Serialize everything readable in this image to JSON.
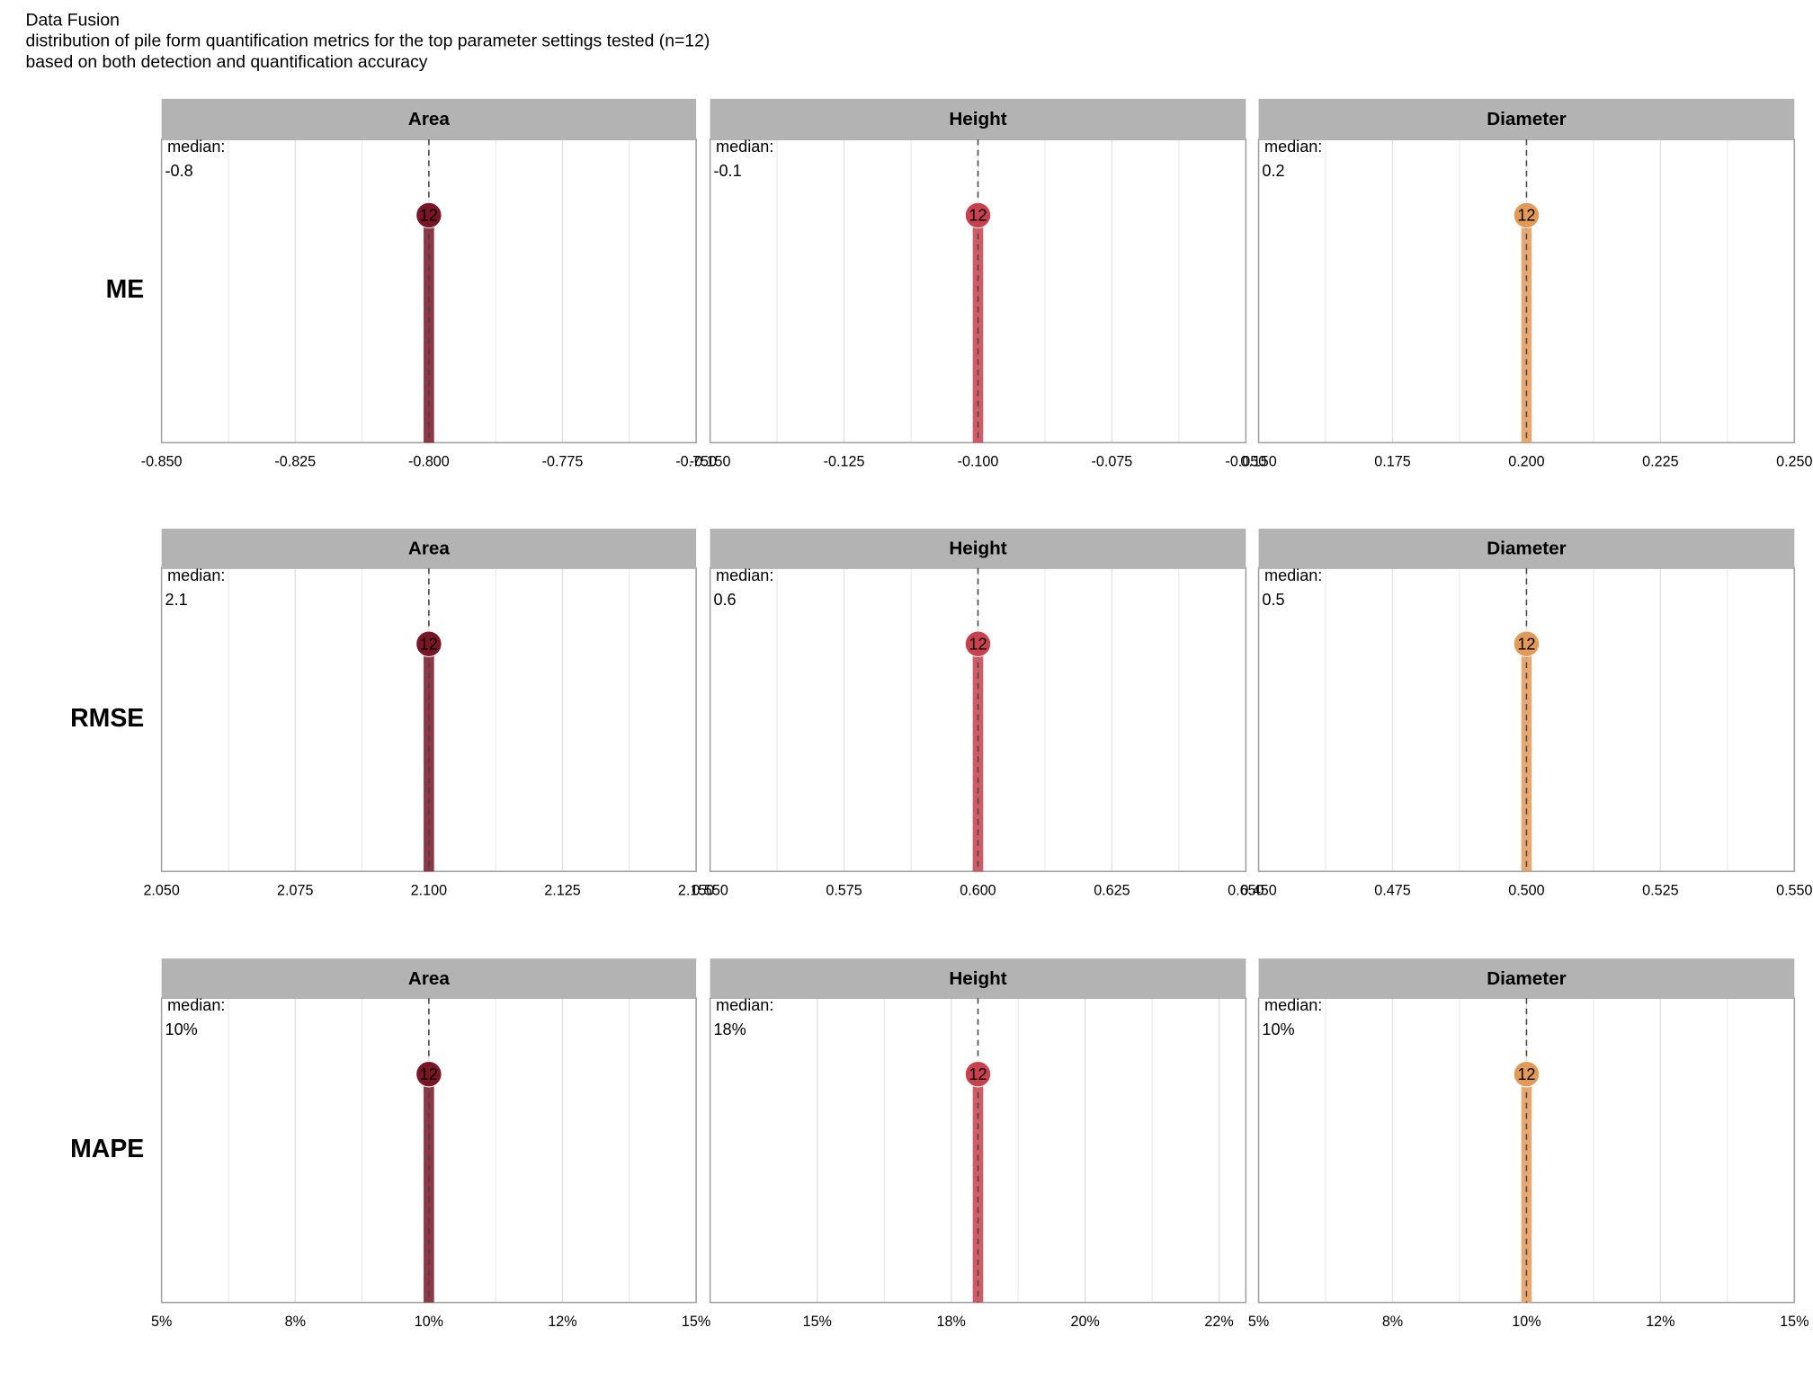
{
  "chart_data": {
    "type": "lollipop",
    "title": "Data Fusion",
    "subtitle": "distribution of pile form quantification metrics for the top parameter settings tested (n=12)",
    "caption": "based on both detection and quantification accuracy",
    "rows": [
      "ME",
      "RMSE",
      "MAPE"
    ],
    "columns": [
      "Area",
      "Height",
      "Diameter"
    ],
    "colors": [
      "#7a1525",
      "#c9404f",
      "#e39a58"
    ],
    "median_label": "median:",
    "ylim": [
      0,
      16
    ],
    "panels": [
      [
        {
          "value": -0.8,
          "count": 12,
          "xlim": [
            -0.85,
            -0.75
          ],
          "xticks": [
            {
              "value": -0.85,
              "label": "-0.850"
            },
            {
              "value": -0.825,
              "label": "-0.825"
            },
            {
              "value": -0.8,
              "label": "-0.800"
            },
            {
              "value": -0.775,
              "label": "-0.775"
            },
            {
              "value": -0.75,
              "label": "-0.750"
            }
          ]
        },
        {
          "value": -0.1,
          "count": 12,
          "xlim": [
            -0.15,
            -0.05
          ],
          "xticks": [
            {
              "value": -0.15,
              "label": "-0.150"
            },
            {
              "value": -0.125,
              "label": "-0.125"
            },
            {
              "value": -0.1,
              "label": "-0.100"
            },
            {
              "value": -0.075,
              "label": "-0.075"
            },
            {
              "value": -0.05,
              "label": "-0.050"
            }
          ]
        },
        {
          "value": 0.2,
          "count": 12,
          "xlim": [
            0.15,
            0.25
          ],
          "xticks": [
            {
              "value": 0.15,
              "label": "0.150"
            },
            {
              "value": 0.175,
              "label": "0.175"
            },
            {
              "value": 0.2,
              "label": "0.200"
            },
            {
              "value": 0.225,
              "label": "0.225"
            },
            {
              "value": 0.25,
              "label": "0.250"
            }
          ]
        }
      ],
      [
        {
          "value": 2.1,
          "count": 12,
          "xlim": [
            2.05,
            2.15
          ],
          "xticks": [
            {
              "value": 2.05,
              "label": "2.050"
            },
            {
              "value": 2.075,
              "label": "2.075"
            },
            {
              "value": 2.1,
              "label": "2.100"
            },
            {
              "value": 2.125,
              "label": "2.125"
            },
            {
              "value": 2.15,
              "label": "2.150"
            }
          ]
        },
        {
          "value": 0.6,
          "count": 12,
          "xlim": [
            0.55,
            0.65
          ],
          "xticks": [
            {
              "value": 0.55,
              "label": "0.550"
            },
            {
              "value": 0.575,
              "label": "0.575"
            },
            {
              "value": 0.6,
              "label": "0.600"
            },
            {
              "value": 0.625,
              "label": "0.625"
            },
            {
              "value": 0.65,
              "label": "0.650"
            }
          ]
        },
        {
          "value": 0.5,
          "count": 12,
          "xlim": [
            0.45,
            0.55
          ],
          "xticks": [
            {
              "value": 0.45,
              "label": "0.450"
            },
            {
              "value": 0.475,
              "label": "0.475"
            },
            {
              "value": 0.5,
              "label": "0.500"
            },
            {
              "value": 0.525,
              "label": "0.525"
            },
            {
              "value": 0.55,
              "label": "0.550"
            }
          ]
        }
      ],
      [
        {
          "value": 10,
          "value_label": "10%",
          "count": 12,
          "xlim": [
            5,
            15
          ],
          "xticks": [
            {
              "value": 5,
              "label": "5%"
            },
            {
              "value": 7.5,
              "label": "8%"
            },
            {
              "value": 10,
              "label": "10%"
            },
            {
              "value": 12.5,
              "label": "12%"
            },
            {
              "value": 15,
              "label": "15%"
            }
          ]
        },
        {
          "value": 18,
          "value_label": "18%",
          "count": 12,
          "xlim": [
            13,
            23
          ],
          "xticks": [
            {
              "value": 15,
              "label": "15%"
            },
            {
              "value": 17.5,
              "label": "18%"
            },
            {
              "value": 20,
              "label": "20%"
            },
            {
              "value": 22.5,
              "label": "22%"
            }
          ]
        },
        {
          "value": 10,
          "value_label": "10%",
          "count": 12,
          "xlim": [
            5,
            15
          ],
          "xticks": [
            {
              "value": 5,
              "label": "5%"
            },
            {
              "value": 7.5,
              "label": "8%"
            },
            {
              "value": 10,
              "label": "10%"
            },
            {
              "value": 12.5,
              "label": "12%"
            },
            {
              "value": 15,
              "label": "15%"
            }
          ]
        }
      ]
    ]
  }
}
